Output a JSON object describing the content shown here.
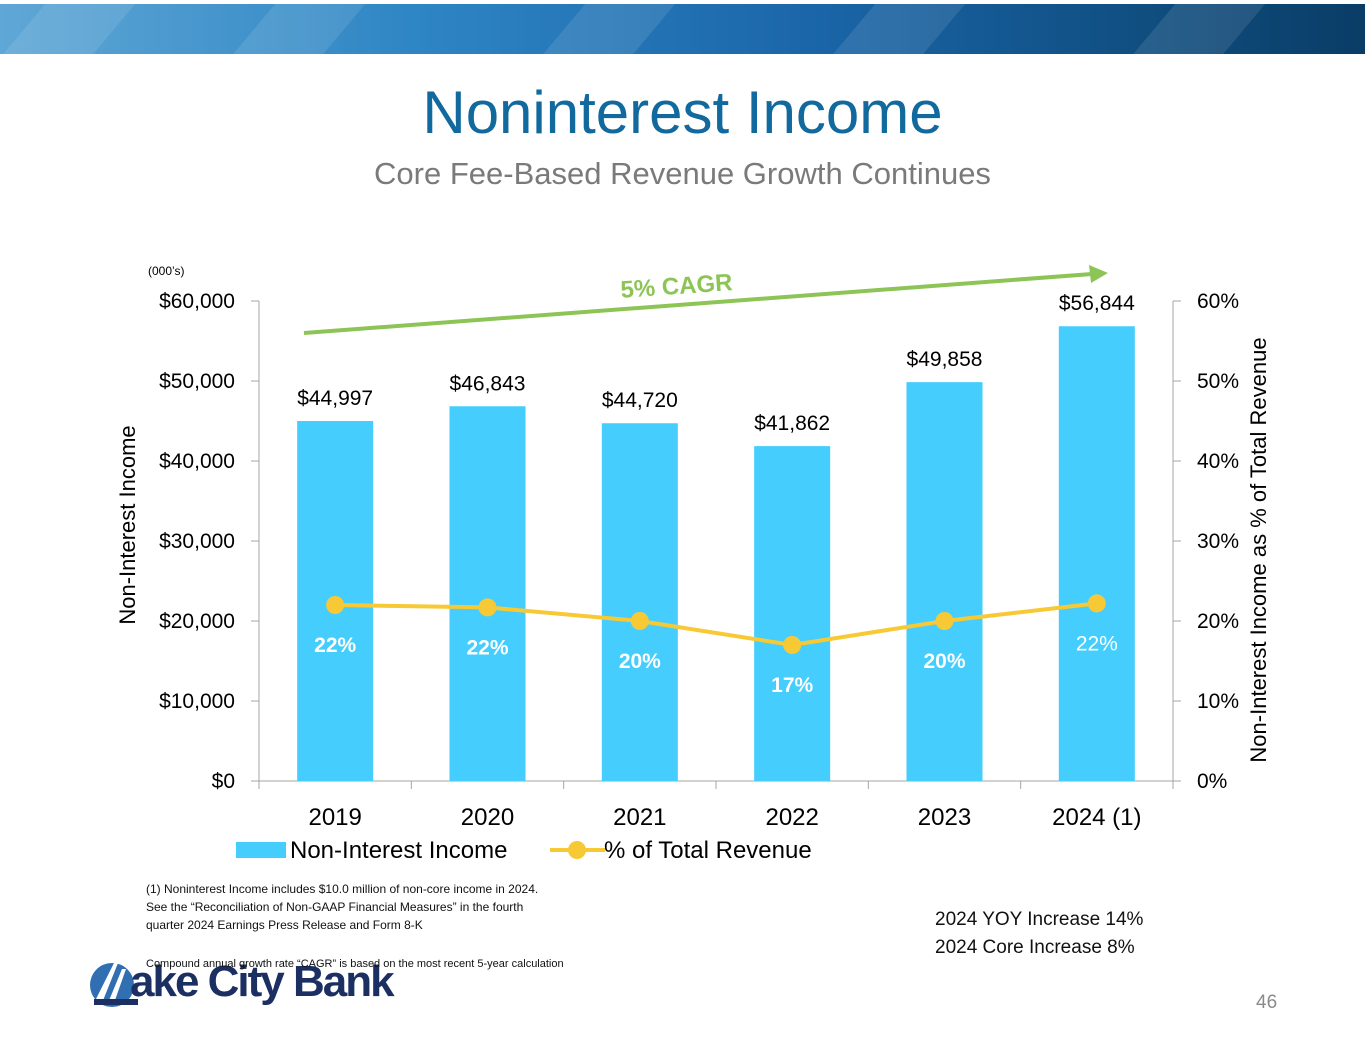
{
  "header": {
    "title": "Noninterest Income",
    "subtitle": "Core Fee-Based Revenue Growth Continues",
    "banner_colors": [
      "#5fa7d6",
      "#0a3d66"
    ]
  },
  "chart_data": {
    "type": "bar",
    "title": "",
    "units_label": "(000’s)",
    "categories": [
      "2019",
      "2020",
      "2021",
      "2022",
      "2023",
      "2024 (1)"
    ],
    "series": [
      {
        "name": "Non-Interest Income",
        "type": "bar",
        "axis": "left",
        "color": "#45cdfd",
        "values": [
          44997,
          46843,
          44720,
          41862,
          49858,
          56844
        ],
        "labels": [
          "$44,997",
          "$46,843",
          "$44,720",
          "$41,862",
          "$49,858",
          "$56,844"
        ]
      },
      {
        "name": "% of Total Revenue",
        "type": "line",
        "axis": "right",
        "color": "#f7c935",
        "values": [
          22,
          21.7,
          20,
          17,
          20,
          22.2
        ],
        "labels": [
          "22%",
          "22%",
          "20%",
          "17%",
          "20%",
          "22%"
        ]
      }
    ],
    "ylabel": "Non-Interest Income",
    "y2label": "Non-Interest Income as % of Total Revenue",
    "ylim": [
      0,
      60000
    ],
    "y2lim": [
      0,
      60
    ],
    "yticks": [
      "$0",
      "$10,000",
      "$20,000",
      "$30,000",
      "$40,000",
      "$50,000",
      "$60,000"
    ],
    "y2ticks": [
      "0%",
      "10%",
      "20%",
      "30%",
      "40%",
      "50%",
      "60%"
    ],
    "legend_position": "bottom",
    "annotation": {
      "text": "5% CAGR",
      "color": "#8cc455"
    },
    "grid": false
  },
  "footnotes": {
    "note1": "(1) Noninterest Income includes $10.0 million of non-core income in 2024.\nSee the “Reconciliation of Non-GAAP Financial Measures” in the fourth\nquarter 2024 Earnings Press Release and Form 8-K",
    "cagr_note": "Compound annual growth rate “CAGR” is based on the most recent 5-year calculation"
  },
  "highlights": {
    "yoy": "2024 YOY Increase 14%",
    "core": "2024 Core Increase  8%"
  },
  "logo": {
    "text": "ake City Bank",
    "colors": [
      "#1b2f63",
      "#2f6fb2"
    ]
  },
  "page_number": "46"
}
